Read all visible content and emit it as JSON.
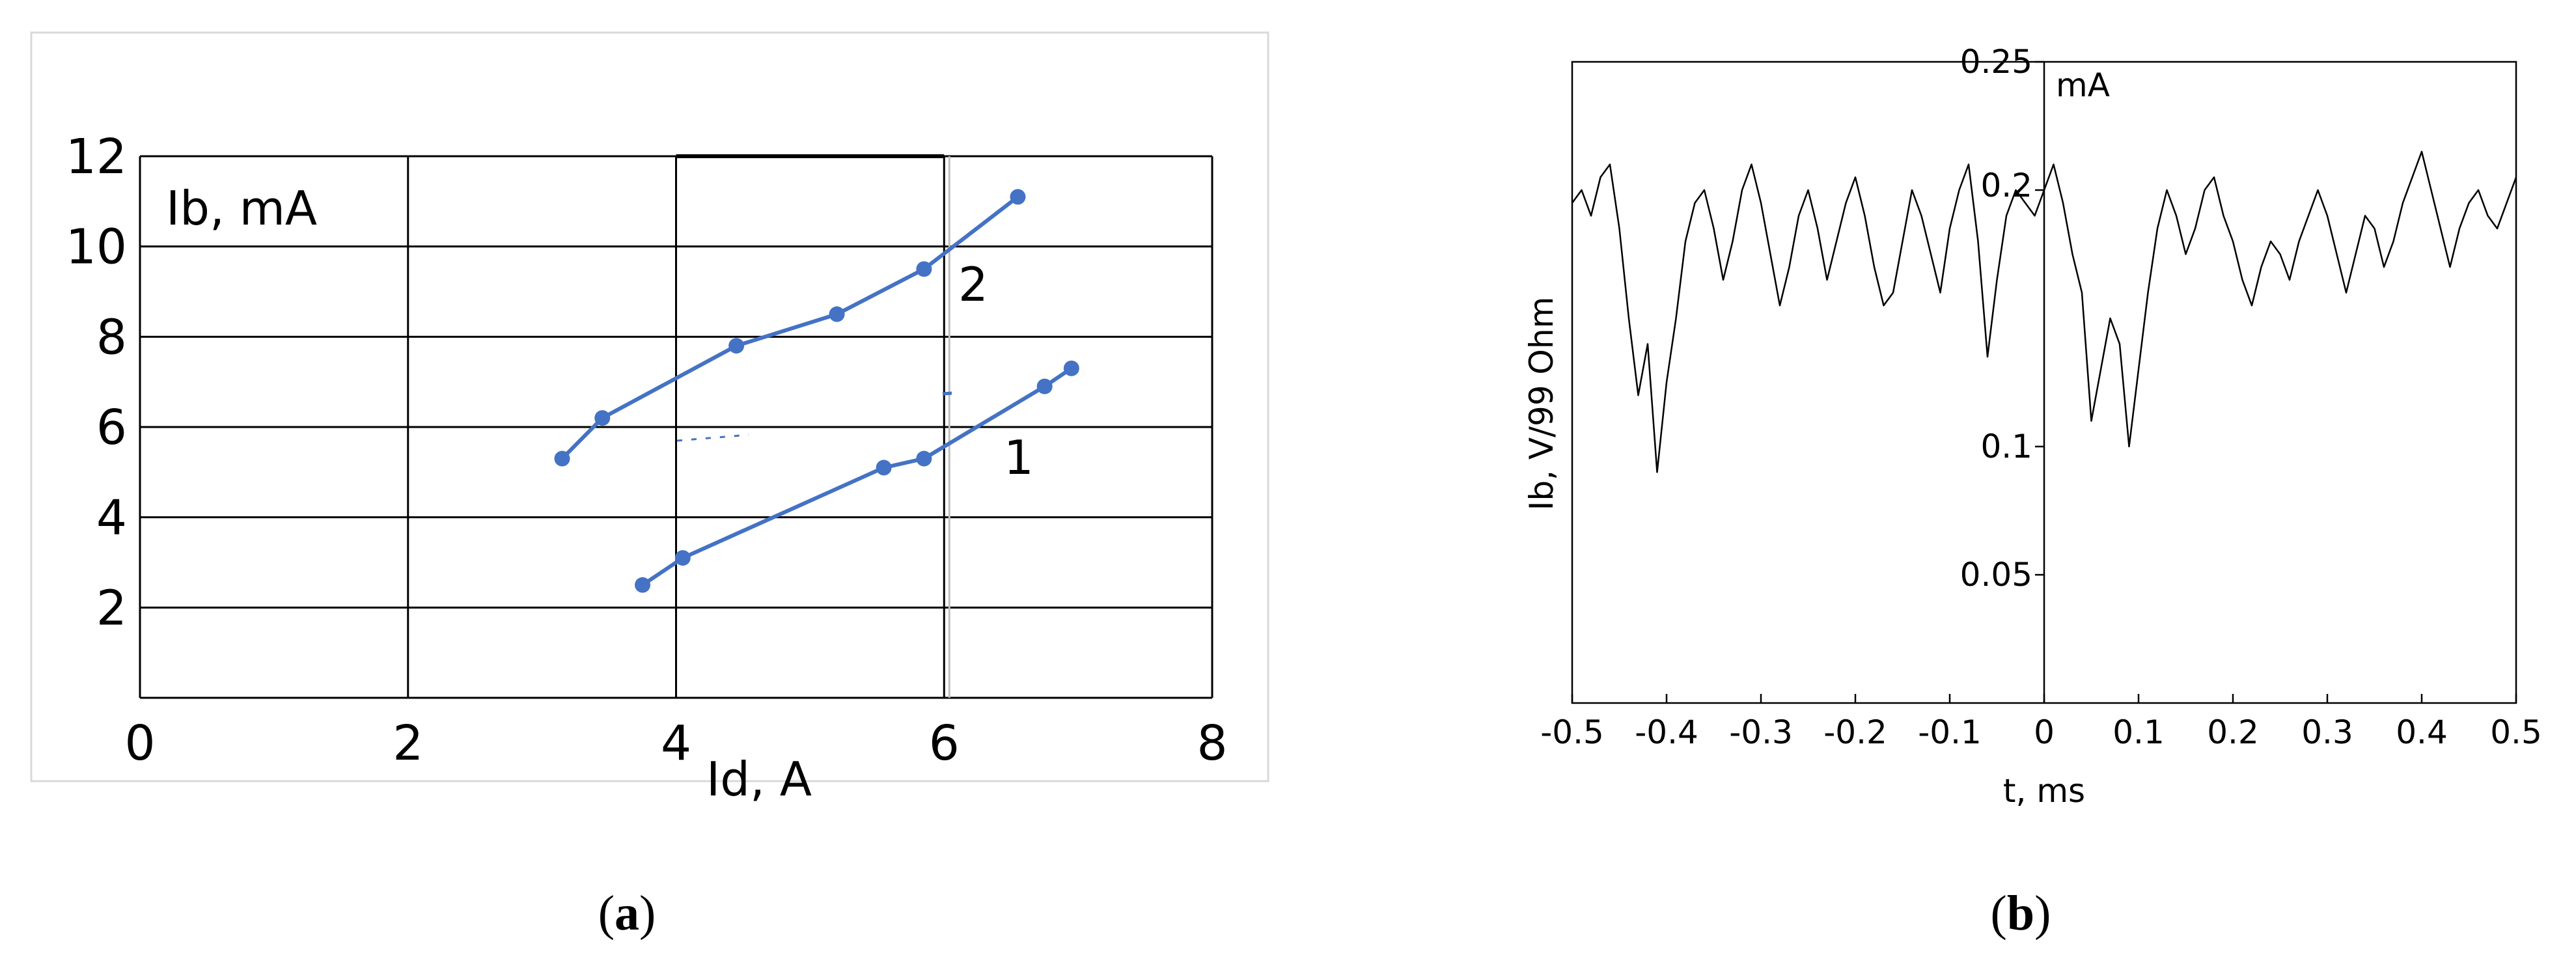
{
  "panel_a": {
    "caption_open": "(",
    "caption_letter": "a",
    "caption_close": ")",
    "chart_data": {
      "type": "line",
      "xlabel": "Id, A",
      "ylabel": "Ib, mA",
      "xlim": [
        0,
        8
      ],
      "ylim": [
        0,
        12
      ],
      "x_ticks": [
        "0",
        "2",
        "4",
        "6",
        "8"
      ],
      "y_ticks": [
        "2",
        "4",
        "6",
        "8",
        "10",
        "12"
      ],
      "grid": true,
      "series": [
        {
          "name": "1",
          "color": "#4472c4",
          "x": [
            3.75,
            4.05,
            5.55,
            5.85,
            6.75,
            6.95
          ],
          "y": [
            2.5,
            3.1,
            5.1,
            5.3,
            6.9,
            7.3
          ]
        },
        {
          "name": "2",
          "color": "#4472c4",
          "x": [
            3.15,
            3.45,
            4.45,
            5.2,
            5.85,
            6.55
          ],
          "y": [
            5.3,
            6.2,
            7.8,
            8.5,
            9.5,
            11.1
          ]
        }
      ]
    }
  },
  "panel_b": {
    "caption_open": "(",
    "caption_letter": "b",
    "caption_close": ")",
    "chart_data": {
      "type": "line",
      "xlabel": "t, ms",
      "ylabel": "Ib, V/99 Ohm",
      "unit_label": "mA",
      "xlim": [
        -0.5,
        0.5
      ],
      "ylim": [
        0,
        0.25
      ],
      "x_ticks": [
        "-0.5",
        "-0.4",
        "-0.3",
        "-0.2",
        "-0.1",
        "0",
        "0.1",
        "0.2",
        "0.3",
        "0.4",
        "0.5"
      ],
      "y_ticks": [
        "0.05",
        "0.1",
        "0.2",
        "0.25"
      ],
      "grid": false,
      "series": [
        {
          "color": "#000000",
          "x": [
            -0.5,
            -0.49,
            -0.48,
            -0.47,
            -0.46,
            -0.45,
            -0.44,
            -0.43,
            -0.42,
            -0.41,
            -0.4,
            -0.39,
            -0.38,
            -0.37,
            -0.36,
            -0.35,
            -0.34,
            -0.33,
            -0.32,
            -0.31,
            -0.3,
            -0.29,
            -0.28,
            -0.27,
            -0.26,
            -0.25,
            -0.24,
            -0.23,
            -0.22,
            -0.21,
            -0.2,
            -0.19,
            -0.18,
            -0.17,
            -0.16,
            -0.15,
            -0.14,
            -0.13,
            -0.12,
            -0.11,
            -0.1,
            -0.09,
            -0.08,
            -0.07,
            -0.06,
            -0.05,
            -0.04,
            -0.03,
            -0.02,
            -0.01,
            0,
            0.01,
            0.02,
            0.03,
            0.04,
            0.05,
            0.06,
            0.07,
            0.08,
            0.09,
            0.1,
            0.11,
            0.12,
            0.13,
            0.14,
            0.15,
            0.16,
            0.17,
            0.18,
            0.19,
            0.2,
            0.21,
            0.22,
            0.23,
            0.24,
            0.25,
            0.26,
            0.27,
            0.28,
            0.29,
            0.3,
            0.31,
            0.32,
            0.33,
            0.34,
            0.35,
            0.36,
            0.37,
            0.38,
            0.39,
            0.4,
            0.41,
            0.42,
            0.43,
            0.44,
            0.45,
            0.46,
            0.47,
            0.48,
            0.49,
            0.5
          ],
          "y": [
            0.195,
            0.2,
            0.19,
            0.205,
            0.21,
            0.185,
            0.15,
            0.12,
            0.14,
            0.09,
            0.125,
            0.15,
            0.18,
            0.195,
            0.2,
            0.185,
            0.165,
            0.18,
            0.2,
            0.21,
            0.195,
            0.175,
            0.155,
            0.17,
            0.19,
            0.2,
            0.185,
            0.165,
            0.18,
            0.195,
            0.205,
            0.19,
            0.17,
            0.155,
            0.16,
            0.18,
            0.2,
            0.19,
            0.175,
            0.16,
            0.185,
            0.2,
            0.21,
            0.18,
            0.135,
            0.165,
            0.19,
            0.2,
            0.195,
            0.19,
            0.2,
            0.21,
            0.195,
            0.175,
            0.16,
            0.11,
            0.13,
            0.15,
            0.14,
            0.1,
            0.13,
            0.16,
            0.185,
            0.2,
            0.19,
            0.175,
            0.185,
            0.2,
            0.205,
            0.19,
            0.18,
            0.165,
            0.155,
            0.17,
            0.18,
            0.175,
            0.165,
            0.18,
            0.19,
            0.2,
            0.19,
            0.175,
            0.16,
            0.175,
            0.19,
            0.185,
            0.17,
            0.18,
            0.195,
            0.205,
            0.215,
            0.2,
            0.185,
            0.17,
            0.185,
            0.195,
            0.2,
            0.19,
            0.185,
            0.195,
            0.205
          ]
        }
      ]
    }
  }
}
